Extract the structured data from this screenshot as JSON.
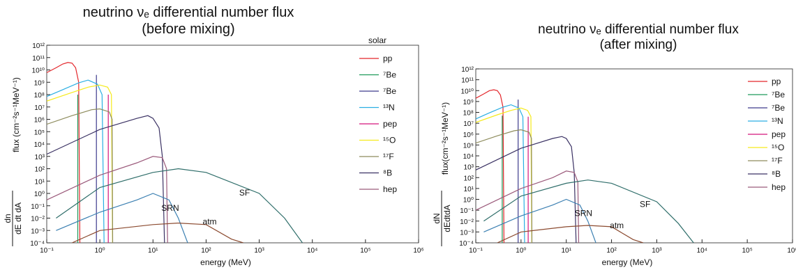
{
  "chart_data": [
    {
      "type": "line",
      "title": "neutrino  νₑ  differential number flux",
      "subtitle": "(before mixing)",
      "x_label": "energy  (MeV)",
      "y_label": "flux (cm⁻²s⁻¹MeV⁻¹)",
      "y_label_numerator": "dn",
      "y_label_denominator": "dE dt dA",
      "legend_title": "solar",
      "log_x": true,
      "log_y": true,
      "xlim": [
        0.1,
        1000000
      ],
      "ylim": [
        0.0001,
        1000000000000
      ],
      "xticks": [
        {
          "value": 0.1,
          "label": "10⁻¹"
        },
        {
          "value": 1,
          "label": "10⁰"
        },
        {
          "value": 10,
          "label": "10¹"
        },
        {
          "value": 100,
          "label": "10²"
        },
        {
          "value": 1000,
          "label": "10³"
        },
        {
          "value": 10000,
          "label": "10⁴"
        },
        {
          "value": 100000,
          "label": "10⁵"
        },
        {
          "value": 1000000,
          "label": "10⁶"
        }
      ],
      "yticks": [
        {
          "value": 0.0001,
          "label": "10⁻⁴"
        },
        {
          "value": 0.001,
          "label": "10⁻³"
        },
        {
          "value": 0.01,
          "label": "10⁻²"
        },
        {
          "value": 0.1,
          "label": "10⁻¹"
        },
        {
          "value": 1,
          "label": "10⁰"
        },
        {
          "value": 10,
          "label": "10¹"
        },
        {
          "value": 100,
          "label": "10²"
        },
        {
          "value": 1000,
          "label": "10³"
        },
        {
          "value": 10000,
          "label": "10⁴"
        },
        {
          "value": 100000,
          "label": "10⁵"
        },
        {
          "value": 1000000,
          "label": "10⁶"
        },
        {
          "value": 10000000,
          "label": "10⁷"
        },
        {
          "value": 100000000,
          "label": "10⁸"
        },
        {
          "value": 1000000000,
          "label": "10⁹"
        },
        {
          "value": 10000000000,
          "label": "10¹⁰"
        },
        {
          "value": 100000000000,
          "label": "10¹¹"
        },
        {
          "value": 1000000000000,
          "label": "10¹²"
        }
      ],
      "series": [
        {
          "name": "pp",
          "color": "#e3262b",
          "x": [
            0.1,
            0.15,
            0.2,
            0.25,
            0.3,
            0.35,
            0.4,
            0.42
          ],
          "values": [
            6000000000,
            15000000000,
            30000000000,
            40000000000,
            35000000000,
            15000000000,
            1000000000,
            0.0001
          ]
        },
        {
          "name": "⁷Be",
          "color": "#1f9a5a",
          "x": [
            0.384,
            0.384
          ],
          "values": [
            0.0001,
            100000000
          ]
        },
        {
          "name": "⁷Be",
          "color": "#3d3a8c",
          "x": [
            0.862,
            0.862
          ],
          "values": [
            0.0001,
            4000000000
          ]
        },
        {
          "name": "¹³N",
          "color": "#2aaee3",
          "x": [
            0.1,
            0.2,
            0.4,
            0.6,
            0.9,
            1.1,
            1.2
          ],
          "values": [
            70000000,
            250000000,
            900000000,
            1500000000,
            700000000,
            100000000,
            0.0001
          ]
        },
        {
          "name": "pep",
          "color": "#d4147c",
          "x": [
            1.44,
            1.44
          ],
          "values": [
            0.0001,
            100000000
          ]
        },
        {
          "name": "¹⁵O",
          "color": "#f5ea1c",
          "x": [
            0.1,
            0.3,
            0.6,
            1.0,
            1.4,
            1.65,
            1.73
          ],
          "values": [
            30000000,
            150000000,
            400000000,
            600000000,
            400000000,
            100000000,
            0.0001
          ]
        },
        {
          "name": "¹⁷F",
          "color": "#8d8b5c",
          "x": [
            0.1,
            0.3,
            0.7,
            1.0,
            1.5,
            1.7,
            1.74
          ],
          "values": [
            400000,
            2000000,
            6000000,
            7000000,
            4000000,
            1000000,
            0.0001
          ]
        },
        {
          "name": "⁸B",
          "color": "#3a3163",
          "x": [
            0.1,
            1,
            5,
            8,
            10,
            13,
            15,
            16.5
          ],
          "values": [
            1500,
            150000,
            1200000,
            2000000,
            1200000,
            200000,
            1000,
            0.0001
          ]
        },
        {
          "name": "hep",
          "color": "#9b5a7b",
          "x": [
            0.1,
            1,
            5,
            10,
            15,
            18,
            18.8
          ],
          "values": [
            0.3,
            30,
            300,
            1000,
            800,
            100,
            0.0001
          ]
        }
      ],
      "annotated_series": [
        {
          "name": "SRN",
          "color": "#3c80b2",
          "x": [
            0.15,
            1,
            5,
            10,
            20,
            30,
            45
          ],
          "values": [
            0.001,
            0.03,
            0.3,
            1,
            0.3,
            0.01,
            0.0001
          ]
        },
        {
          "name": "SF",
          "color": "#2f6e6a",
          "x": [
            0.15,
            1,
            10,
            30,
            100,
            1000,
            3000,
            6500
          ],
          "values": [
            0.01,
            3,
            50,
            100,
            50,
            1,
            0.01,
            0.0001
          ]
        },
        {
          "name": "atm",
          "color": "#8b4a2f",
          "x": [
            0.3,
            1,
            10,
            30,
            100,
            300,
            500
          ],
          "values": [
            0.0001,
            0.001,
            0.003,
            0.004,
            0.003,
            0.0002,
            0.0001
          ]
        }
      ]
    },
    {
      "type": "line",
      "title": "neutrino  νₑ  differential number flux",
      "subtitle": "(after  mixing)",
      "x_label": "energy (MeV)",
      "y_label": "flux(cm⁻²s⁻¹MeV⁻¹)",
      "y_label_numerator": "dN",
      "y_label_denominator": "dEdtdA",
      "log_x": true,
      "log_y": true,
      "xlim": [
        0.1,
        1000000
      ],
      "ylim": [
        0.0001,
        1000000000000
      ],
      "xticks": [
        {
          "value": 0.1,
          "label": "10⁻¹"
        },
        {
          "value": 1,
          "label": "10⁰"
        },
        {
          "value": 10,
          "label": "10¹"
        },
        {
          "value": 100,
          "label": "10²"
        },
        {
          "value": 1000,
          "label": "10³"
        },
        {
          "value": 10000,
          "label": "10⁴"
        },
        {
          "value": 100000,
          "label": "10⁵"
        },
        {
          "value": 1000000,
          "label": "10⁶"
        }
      ],
      "yticks": [
        {
          "value": 0.0001,
          "label": "10⁻⁴"
        },
        {
          "value": 0.001,
          "label": "10⁻³"
        },
        {
          "value": 0.01,
          "label": "10⁻²"
        },
        {
          "value": 0.1,
          "label": "10⁻¹"
        },
        {
          "value": 1,
          "label": "10⁰"
        },
        {
          "value": 10,
          "label": "10¹"
        },
        {
          "value": 100,
          "label": "10²"
        },
        {
          "value": 1000,
          "label": "10³"
        },
        {
          "value": 10000,
          "label": "10⁴"
        },
        {
          "value": 100000,
          "label": "10⁵"
        },
        {
          "value": 1000000,
          "label": "10⁶"
        },
        {
          "value": 10000000,
          "label": "10⁷"
        },
        {
          "value": 100000000,
          "label": "10⁸"
        },
        {
          "value": 1000000000,
          "label": "10⁹"
        },
        {
          "value": 10000000000,
          "label": "10¹⁰"
        },
        {
          "value": 100000000000,
          "label": "10¹¹"
        },
        {
          "value": 1000000000000,
          "label": "10¹²"
        }
      ],
      "series": [
        {
          "name": "pp",
          "color": "#e3262b",
          "x": [
            0.1,
            0.15,
            0.2,
            0.25,
            0.3,
            0.35,
            0.4,
            0.42
          ],
          "values": [
            2000000000,
            5000000000,
            10000000000,
            12000000000,
            10000000000,
            4000000000,
            300000000,
            0.0001
          ]
        },
        {
          "name": "⁷Be",
          "color": "#1f9a5a",
          "x": [
            0.384,
            0.384
          ],
          "values": [
            0.0001,
            50000000
          ]
        },
        {
          "name": "⁷Be",
          "color": "#3d3a8c",
          "x": [
            0.862,
            0.862
          ],
          "values": [
            0.0001,
            1500000000
          ]
        },
        {
          "name": "¹³N",
          "color": "#2aaee3",
          "x": [
            0.1,
            0.2,
            0.4,
            0.6,
            0.9,
            1.1,
            1.2
          ],
          "values": [
            25000000,
            90000000,
            300000000,
            500000000,
            250000000,
            40000000,
            0.0001
          ]
        },
        {
          "name": "pep",
          "color": "#d4147c",
          "x": [
            1.44,
            1.44
          ],
          "values": [
            0.0001,
            40000000
          ]
        },
        {
          "name": "¹⁵O",
          "color": "#f5ea1c",
          "x": [
            0.1,
            0.3,
            0.6,
            1.0,
            1.4,
            1.65,
            1.73
          ],
          "values": [
            12000000,
            60000000,
            150000000,
            250000000,
            150000000,
            40000000,
            0.0001
          ]
        },
        {
          "name": "¹⁷F",
          "color": "#8d8b5c",
          "x": [
            0.1,
            0.3,
            0.7,
            1.0,
            1.5,
            1.7,
            1.74
          ],
          "values": [
            150000,
            700000,
            2000000,
            2500000,
            1500000,
            400000,
            0.0001
          ]
        },
        {
          "name": "⁸B",
          "color": "#3a3163",
          "x": [
            0.1,
            1,
            5,
            8,
            10,
            13,
            15,
            16.5
          ],
          "values": [
            500,
            50000,
            400000,
            600000,
            400000,
            70000,
            300,
            0.0001
          ]
        },
        {
          "name": "hep",
          "color": "#9b5a7b",
          "x": [
            0.1,
            1,
            5,
            10,
            15,
            18,
            18.8
          ],
          "values": [
            0.1,
            10,
            100,
            400,
            300,
            40,
            0.0001
          ]
        }
      ],
      "annotated_series": [
        {
          "name": "SRN",
          "color": "#3c80b2",
          "x": [
            0.15,
            1,
            5,
            10,
            20,
            30,
            45
          ],
          "values": [
            0.001,
            0.03,
            0.3,
            1,
            0.3,
            0.01,
            0.0001
          ]
        },
        {
          "name": "SF",
          "color": "#2f6e6a",
          "x": [
            0.15,
            1,
            10,
            30,
            100,
            1000,
            3000,
            6500
          ],
          "values": [
            0.01,
            2,
            30,
            60,
            30,
            0.6,
            0.006,
            0.0001
          ]
        },
        {
          "name": "atm",
          "color": "#8b4a2f",
          "x": [
            0.3,
            1,
            10,
            30,
            100,
            300,
            500
          ],
          "values": [
            0.0001,
            0.001,
            0.003,
            0.004,
            0.003,
            0.0002,
            0.0001
          ]
        }
      ]
    }
  ]
}
